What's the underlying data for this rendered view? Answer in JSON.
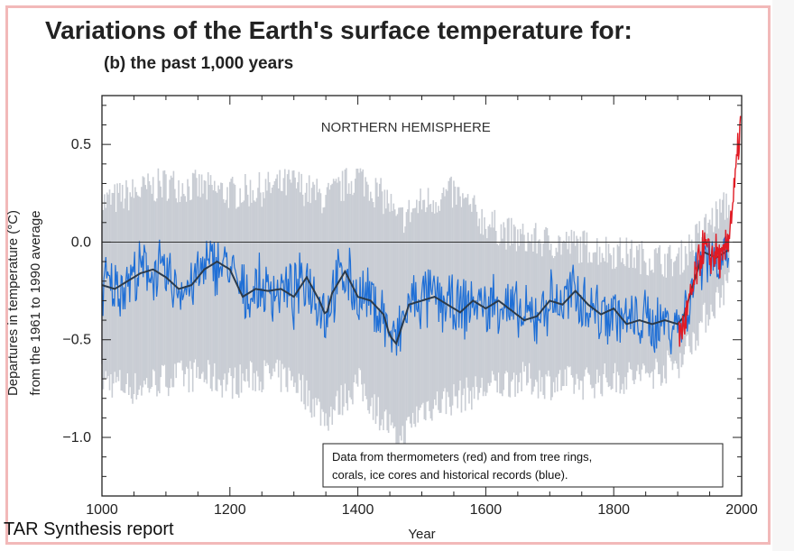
{
  "title": "Variations of the Earth's surface temperature for:",
  "subtitle": "(b) the past 1,000 years",
  "footer": "TAR Synthesis report",
  "chart_data": {
    "type": "line",
    "annotation": "NORTHERN HEMISPHERE",
    "xlabel": "Year",
    "ylabel_line1": "Departures in temperature (°C)",
    "ylabel_line2": "from the 1961 to 1990 average",
    "xlim": [
      1000,
      2000
    ],
    "ylim": [
      -1.3,
      0.75
    ],
    "x_ticks": [
      1000,
      1200,
      1400,
      1600,
      1800,
      2000
    ],
    "y_ticks": [
      0.5,
      0.0,
      -0.5,
      -1.0
    ],
    "y_tick_labels": [
      "0.5",
      "0.0",
      "−0.5",
      "−1.0"
    ],
    "legend_text_line1": "Data from thermometers (red) and from tree rings,",
    "legend_text_line2": "corals, ice cores and historical records (blue).",
    "legend_position": "bottom-right",
    "colors": {
      "proxy_annual": "#1f6fd6",
      "thermometer": "#e01b24",
      "smoothed": "#2b3a4a",
      "uncertainty": "#c9cdd4",
      "zero_line": "#333333"
    },
    "series": [
      {
        "key": "smoothed",
        "x": [
          1000,
          1020,
          1040,
          1060,
          1080,
          1100,
          1120,
          1140,
          1160,
          1180,
          1200,
          1220,
          1240,
          1260,
          1280,
          1300,
          1320,
          1340,
          1350,
          1360,
          1380,
          1400,
          1420,
          1440,
          1450,
          1460,
          1470,
          1480,
          1500,
          1520,
          1540,
          1560,
          1580,
          1600,
          1620,
          1640,
          1660,
          1680,
          1700,
          1720,
          1740,
          1760,
          1780,
          1800,
          1820,
          1840,
          1860,
          1880,
          1900,
          1910,
          1920,
          1940,
          1960,
          1980
        ],
        "values": [
          -0.22,
          -0.24,
          -0.2,
          -0.16,
          -0.14,
          -0.18,
          -0.24,
          -0.22,
          -0.14,
          -0.1,
          -0.14,
          -0.28,
          -0.24,
          -0.25,
          -0.24,
          -0.28,
          -0.18,
          -0.3,
          -0.38,
          -0.26,
          -0.15,
          -0.28,
          -0.3,
          -0.37,
          -0.48,
          -0.52,
          -0.42,
          -0.32,
          -0.3,
          -0.28,
          -0.32,
          -0.36,
          -0.3,
          -0.34,
          -0.3,
          -0.35,
          -0.4,
          -0.38,
          -0.3,
          -0.32,
          -0.25,
          -0.32,
          -0.37,
          -0.34,
          -0.42,
          -0.4,
          -0.42,
          -0.4,
          -0.42,
          -0.38,
          -0.26,
          -0.05,
          -0.08,
          -0.04
        ]
      },
      {
        "key": "uncertainty",
        "x": [
          1000,
          1050,
          1100,
          1150,
          1200,
          1250,
          1300,
          1350,
          1400,
          1450,
          1460,
          1500,
          1550,
          1600,
          1650,
          1700,
          1750,
          1800,
          1850,
          1900,
          1950,
          1980
        ],
        "upper": [
          0.2,
          0.25,
          0.3,
          0.28,
          0.25,
          0.27,
          0.3,
          0.22,
          0.34,
          0.2,
          0.1,
          0.2,
          0.25,
          0.1,
          0.02,
          0.0,
          -0.02,
          -0.05,
          -0.08,
          -0.1,
          0.1,
          0.2
        ],
        "lower": [
          -0.7,
          -0.75,
          -0.7,
          -0.68,
          -0.72,
          -0.68,
          -0.7,
          -0.9,
          -0.72,
          -0.95,
          -1.05,
          -0.85,
          -0.8,
          -0.75,
          -0.7,
          -0.72,
          -0.72,
          -0.7,
          -0.68,
          -0.62,
          -0.35,
          -0.2
        ]
      },
      {
        "key": "thermometer",
        "x": [
          1902,
          1910,
          1920,
          1930,
          1940,
          1950,
          1960,
          1970,
          1980,
          1990,
          1995,
          1999
        ],
        "values": [
          -0.48,
          -0.42,
          -0.3,
          -0.15,
          -0.02,
          -0.08,
          -0.05,
          -0.12,
          0.05,
          0.3,
          0.5,
          0.62
        ]
      }
    ]
  }
}
